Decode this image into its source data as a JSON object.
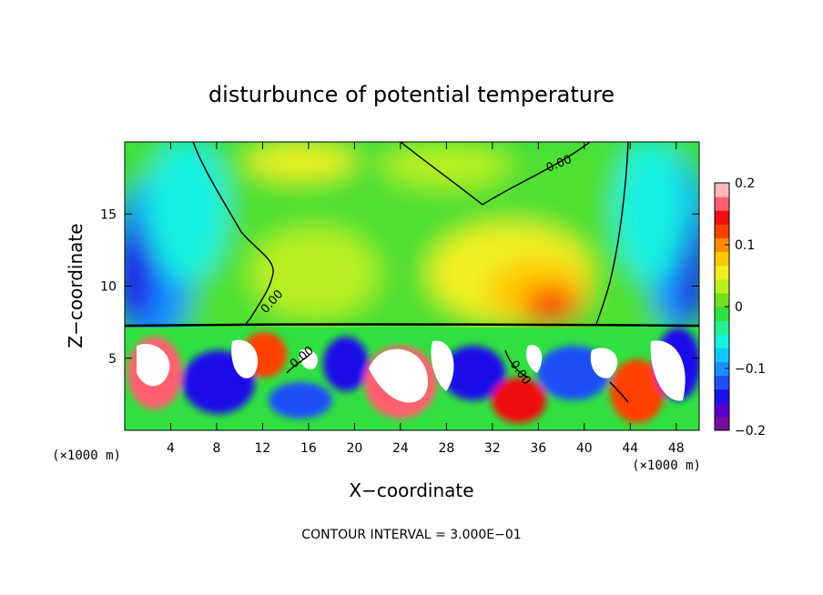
{
  "chart_data": {
    "type": "heatmap",
    "title": "disturbunce of potential temperature",
    "xlabel": "X−coordinate",
    "ylabel": "Z−coordinate",
    "x_unit_left": "(×1000 m)",
    "x_unit_right": "(×1000 m)",
    "x_ticks": [
      4,
      8,
      12,
      16,
      20,
      24,
      28,
      32,
      36,
      40,
      44,
      48
    ],
    "y_ticks": [
      5,
      10,
      15
    ],
    "xlim": [
      0,
      50
    ],
    "ylim": [
      0,
      20
    ],
    "contour_label": "0.00",
    "footer": "CONTOUR INTERVAL = 3.000E−01",
    "colorbar": {
      "ticks": [
        0.2,
        0.1,
        0,
        -0.1,
        -0.2
      ],
      "tick_labels": [
        "0.2",
        "0.1",
        "0",
        "−0.1",
        "−0.2"
      ],
      "min": -0.2,
      "max": 0.2,
      "colors": [
        "#7a0ba0",
        "#5800c8",
        "#1a10e8",
        "#1e50f8",
        "#1890ff",
        "#10c8f8",
        "#18f0e0",
        "#28f090",
        "#30e040",
        "#70e020",
        "#b8f020",
        "#f0f020",
        "#ffc800",
        "#ff8c00",
        "#ff4000",
        "#f01010",
        "#ff6070",
        "#ffb8b8"
      ]
    }
  }
}
